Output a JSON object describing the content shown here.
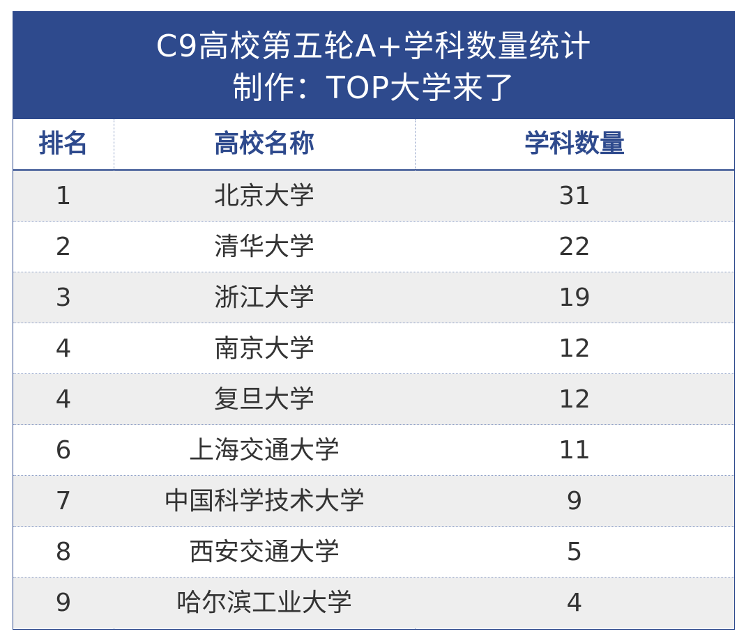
{
  "title": {
    "line1": "C9高校第五轮A+学科数量统计",
    "line2": "制作：TOP大学来了"
  },
  "colors": {
    "header_bg": "#2e4a8d",
    "header_text": "#2e4a8d",
    "row_alt": "#eeeeee"
  },
  "chart_data": {
    "type": "table",
    "columns": [
      "排名",
      "高校名称",
      "学科数量"
    ],
    "rows": [
      {
        "rank": "1",
        "name": "北京大学",
        "count": "31"
      },
      {
        "rank": "2",
        "name": "清华大学",
        "count": "22"
      },
      {
        "rank": "3",
        "name": "浙江大学",
        "count": "19"
      },
      {
        "rank": "4",
        "name": "南京大学",
        "count": "12"
      },
      {
        "rank": "4",
        "name": "复旦大学",
        "count": "12"
      },
      {
        "rank": "6",
        "name": "上海交通大学",
        "count": "11"
      },
      {
        "rank": "7",
        "name": "中国科学技术大学",
        "count": "9"
      },
      {
        "rank": "8",
        "name": "西安交通大学",
        "count": "5"
      },
      {
        "rank": "9",
        "name": "哈尔滨工业大学",
        "count": "4"
      }
    ]
  }
}
